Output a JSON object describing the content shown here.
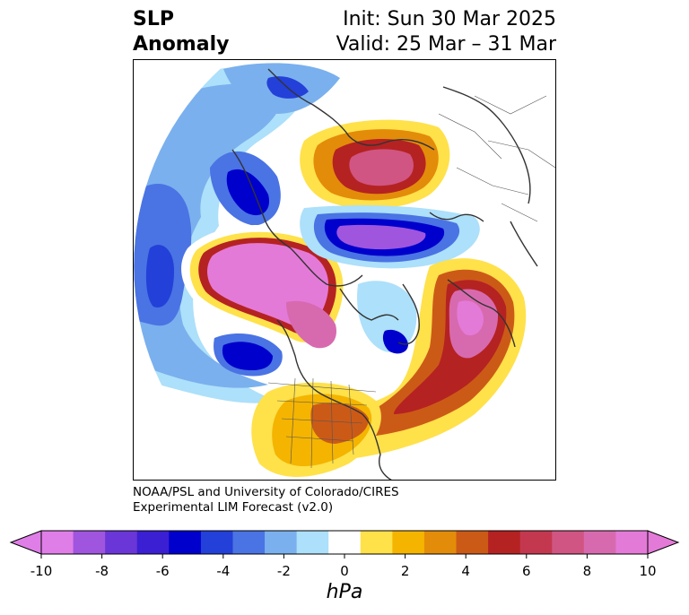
{
  "header": {
    "title_line1": "SLP",
    "title_line2": "Anomaly",
    "init_text": "Init: Sun 30 Mar 2025",
    "valid_text": "Valid: 25 Mar – 31 Mar"
  },
  "credit": {
    "line1": "NOAA/PSL and University of Colorado/CIRES",
    "line2": "Experimental LIM Forecast (v2.0)"
  },
  "colorbar": {
    "units": "hPa",
    "bins": [
      -10,
      -9,
      -8,
      -7,
      -6,
      -5,
      -4,
      -3,
      -2,
      -1,
      1,
      2,
      3,
      4,
      5,
      6,
      7,
      8,
      9,
      10
    ],
    "colors": [
      "#e07ee8",
      "#9f55de",
      "#6a36d8",
      "#3b1fd2",
      "#0000cc",
      "#2340d8",
      "#4a73e4",
      "#7ab0ee",
      "#ade0fa",
      "#ffffff",
      "#ffe14a",
      "#f4b400",
      "#e38c0a",
      "#cc5a17",
      "#b52222",
      "#c4384f",
      "#d05582",
      "#d76aaf",
      "#e47ad8"
    ],
    "low_extend_color": "#e07ee8",
    "high_extend_color": "#e47ad8",
    "tick_labels": [
      "-10",
      "-8",
      "-6",
      "-4",
      "-2",
      "0",
      "2",
      "4",
      "6",
      "8",
      "10"
    ]
  },
  "map": {
    "projection": "north-polar-stereographic",
    "field": "SLP anomaly"
  }
}
